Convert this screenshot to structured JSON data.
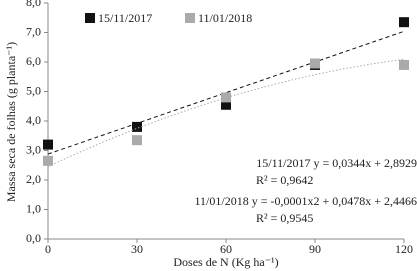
{
  "chart_data": {
    "type": "scatter",
    "x_label": "Doses de N (Kg ha⁻¹)",
    "y_label": "Massa seca de folhas (g planta⁻¹)",
    "x": [
      0,
      30,
      60,
      90,
      120
    ],
    "series": [
      {
        "name": "15/11/2017",
        "color": "#111111",
        "values": [
          3.2,
          3.8,
          4.55,
          5.9,
          7.35
        ],
        "trendline": "linear",
        "trend_style": "dashed"
      },
      {
        "name": "11/01/2018",
        "color": "#aaaaaa",
        "values": [
          2.65,
          3.35,
          4.8,
          5.95,
          5.9
        ],
        "trendline": "quadratic",
        "trend_style": "dotted"
      }
    ],
    "xlim": [
      0,
      120
    ],
    "xticks": [
      0,
      30,
      60,
      90,
      120
    ],
    "ylim": [
      0,
      8
    ],
    "yticks": [
      {
        "value": 0,
        "label": "0,0"
      },
      {
        "value": 1,
        "label": "1,0"
      },
      {
        "value": 2,
        "label": "2,0"
      },
      {
        "value": 3,
        "label": "3,0"
      },
      {
        "value": 4,
        "label": "4,0"
      },
      {
        "value": 5,
        "label": "5,0"
      },
      {
        "value": 6,
        "label": "6,0"
      },
      {
        "value": 7,
        "label": "7,0"
      },
      {
        "value": 8,
        "label": "8,0"
      }
    ],
    "annotations": [
      "15/11/2017 y = 0,0344x + 2,8929",
      "R² = 0,9642",
      "11/01/2018 y = -0,0001x2 + 0,0478x + 2,4466",
      "R² = 0,9545"
    ]
  }
}
